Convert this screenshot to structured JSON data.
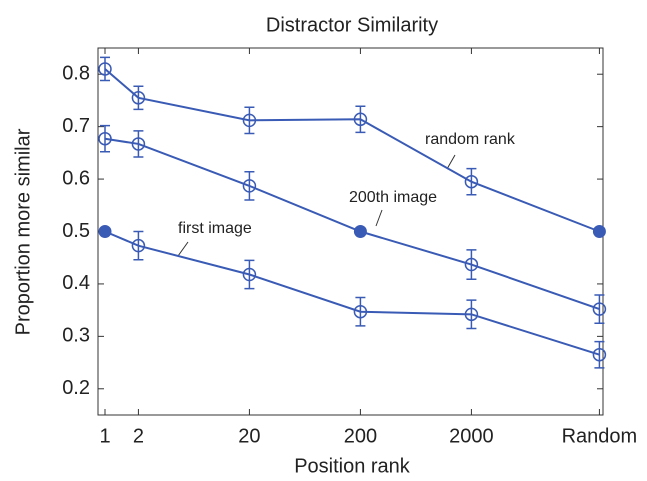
{
  "chart_data": {
    "type": "line",
    "title": "Distractor Similarity",
    "x_label": "Position rank",
    "y_label": "Proportion more similar",
    "categories": [
      "1",
      "2",
      "20",
      "200",
      "2000",
      "Random"
    ],
    "x_log_scale": true,
    "series": [
      {
        "name": "random rank",
        "color": "#3a5bb5",
        "values": [
          0.81,
          0.755,
          0.712,
          0.714,
          0.595,
          0.5
        ],
        "errors": [
          0.022,
          0.022,
          0.025,
          0.025,
          0.025,
          null
        ]
      },
      {
        "name": "200th image",
        "color": "#3a5bb5",
        "values": [
          0.677,
          0.667,
          0.587,
          0.5,
          0.437,
          0.352
        ],
        "errors": [
          0.025,
          0.025,
          0.027,
          null,
          0.028,
          0.027
        ]
      },
      {
        "name": "first image",
        "color": "#3a5bb5",
        "values": [
          0.5,
          0.473,
          0.418,
          0.347,
          0.342,
          0.265
        ],
        "errors": [
          null,
          0.027,
          0.027,
          0.027,
          0.027,
          0.025
        ]
      }
    ],
    "ylim": [
      0.15,
      0.85
    ],
    "yticks": [
      0.2,
      0.3,
      0.4,
      0.5,
      0.6,
      0.7,
      0.8
    ]
  }
}
